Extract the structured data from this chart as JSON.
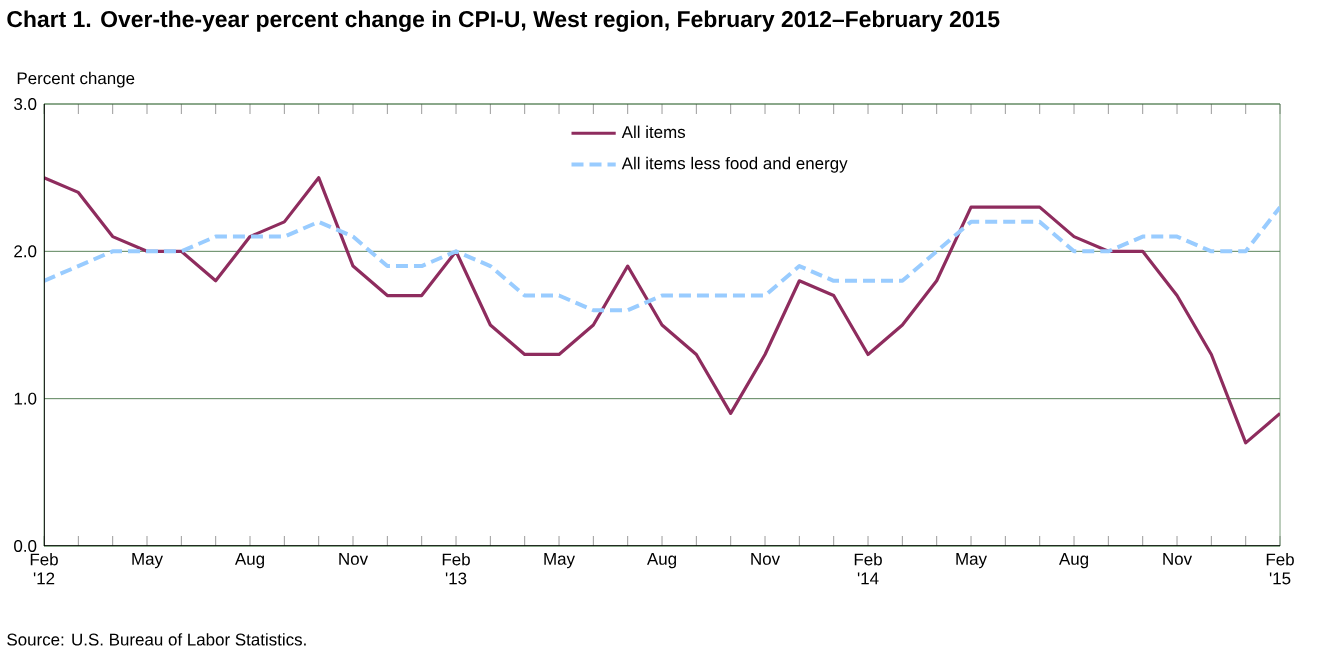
{
  "chart_data": {
    "type": "line",
    "title": "Chart 1. Over-the-year percent change in CPI-U, West region, February 2012–February 2015",
    "ylabel": "Percent change",
    "annotations": [
      "Source: U.S. Bureau of Labor Statistics."
    ],
    "categories": [
      "Feb '12",
      null,
      null,
      "May",
      null,
      null,
      "Aug",
      null,
      null,
      "Nov",
      null,
      null,
      "Feb '13",
      null,
      null,
      "May",
      null,
      null,
      "Aug",
      null,
      null,
      "Nov",
      null,
      null,
      "Feb '14",
      null,
      null,
      "May",
      null,
      null,
      "Aug",
      null,
      null,
      "Nov",
      null,
      null,
      "Feb '15"
    ],
    "series": [
      {
        "name": "All items",
        "color": "#8e2c5e",
        "line_style": "solid",
        "values": [
          2.5,
          2.4,
          2.1,
          2.0,
          2.0,
          1.8,
          2.1,
          2.2,
          2.5,
          1.9,
          1.7,
          1.7,
          2.0,
          1.5,
          1.3,
          1.3,
          1.5,
          1.9,
          1.5,
          1.3,
          0.9,
          1.3,
          1.8,
          1.7,
          1.3,
          1.5,
          1.8,
          2.3,
          2.3,
          2.3,
          2.1,
          2.0,
          2.0,
          1.7,
          1.3,
          0.7,
          0.9
        ]
      },
      {
        "name": "All items less food and energy",
        "color": "#99ccff",
        "line_style": "dashed",
        "values": [
          1.8,
          1.9,
          2.0,
          2.0,
          2.0,
          2.1,
          2.1,
          2.1,
          2.2,
          2.1,
          1.9,
          1.9,
          2.0,
          1.9,
          1.7,
          1.7,
          1.6,
          1.6,
          1.7,
          1.7,
          1.7,
          1.7,
          1.9,
          1.8,
          1.8,
          1.8,
          2.0,
          2.2,
          2.2,
          2.2,
          2.0,
          2.0,
          2.1,
          2.1,
          2.0,
          2.0,
          2.3
        ]
      }
    ],
    "ylim": [
      0,
      3
    ],
    "yticks": [
      {
        "value": 0,
        "label": "0.0"
      },
      {
        "value": 1,
        "label": "1.0"
      },
      {
        "value": 2,
        "label": "2.0"
      },
      {
        "value": 3,
        "label": "3.0"
      }
    ],
    "grid": "y",
    "legend": "top"
  }
}
